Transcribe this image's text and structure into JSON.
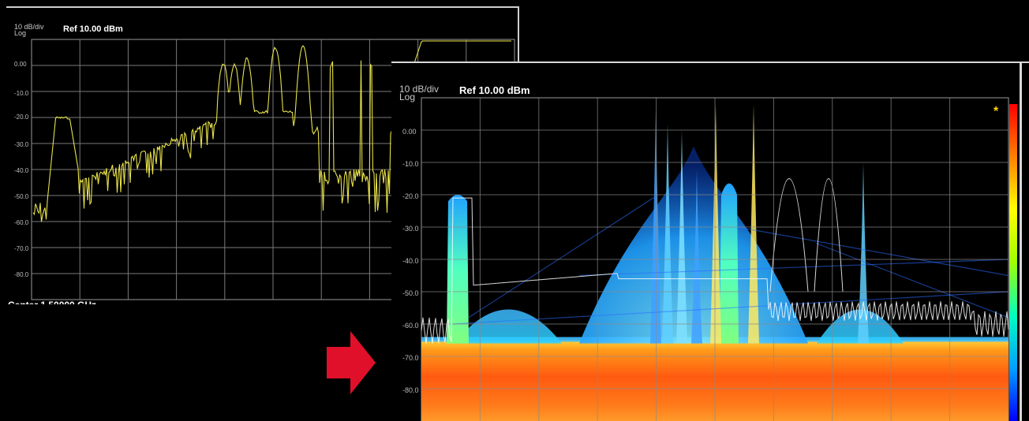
{
  "left_display": {
    "scale": "10 dB/div",
    "scale_type": "Log",
    "ref_level": "Ref 10.00 dBm",
    "y_ticks": [
      "0.00",
      "-10.0",
      "-20.0",
      "-30.0",
      "-40.0",
      "-50.0",
      "-60.0",
      "-70.0",
      "-80.0"
    ],
    "center_label_partial": "Center 1.50000 GHz",
    "trace_color": "#e8e24a"
  },
  "right_display": {
    "scale": "10 dB/div",
    "scale_type": "Log",
    "ref_level": "Ref 10.00 dBm",
    "y_ticks": [
      "0.00",
      "-10.0",
      "-20.0",
      "-30.0",
      "-40.0",
      "-50.0",
      "-60.0",
      "-70.0",
      "-80.0"
    ],
    "marker_symbol": "*",
    "colorbar": [
      "#0000ff",
      "#00a0ff",
      "#00ffc0",
      "#a0ff00",
      "#ffff00",
      "#ff8000",
      "#ff0000"
    ]
  },
  "arrow_color": "#e0102a"
}
